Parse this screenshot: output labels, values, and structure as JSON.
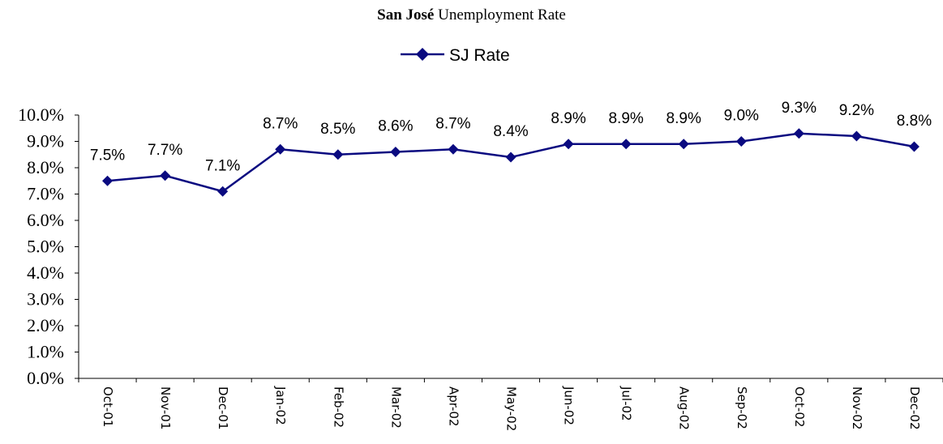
{
  "chart_data": {
    "type": "line",
    "title_bold": "San José",
    "title_rest": "Unemployment Rate",
    "categories": [
      "Oct-01",
      "Nov-01",
      "Dec-01",
      "Jan-02",
      "Feb-02",
      "Mar-02",
      "Apr-02",
      "May-02",
      "Jun-02",
      "Jul-02",
      "Aug-02",
      "Sep-02",
      "Oct-02",
      "Nov-02",
      "Dec-02"
    ],
    "series": [
      {
        "name": "SJ Rate",
        "values": [
          7.5,
          7.7,
          7.1,
          8.7,
          8.5,
          8.6,
          8.7,
          8.4,
          8.9,
          8.9,
          8.9,
          9.0,
          9.3,
          9.2,
          8.8
        ],
        "labels": [
          "7.5%",
          "7.7%",
          "7.1%",
          "8.7%",
          "8.5%",
          "8.6%",
          "8.7%",
          "8.4%",
          "8.9%",
          "8.9%",
          "8.9%",
          "9.0%",
          "9.3%",
          "9.2%",
          "8.8%"
        ],
        "color": "#0a0a80",
        "marker": "diamond"
      }
    ],
    "ylim": [
      0,
      10
    ],
    "yticks": [
      "0.0%",
      "1.0%",
      "2.0%",
      "3.0%",
      "4.0%",
      "5.0%",
      "6.0%",
      "7.0%",
      "8.0%",
      "9.0%",
      "10.0%"
    ],
    "xlabel": "",
    "ylabel": "",
    "grid": false,
    "legend_position": "top-center"
  }
}
